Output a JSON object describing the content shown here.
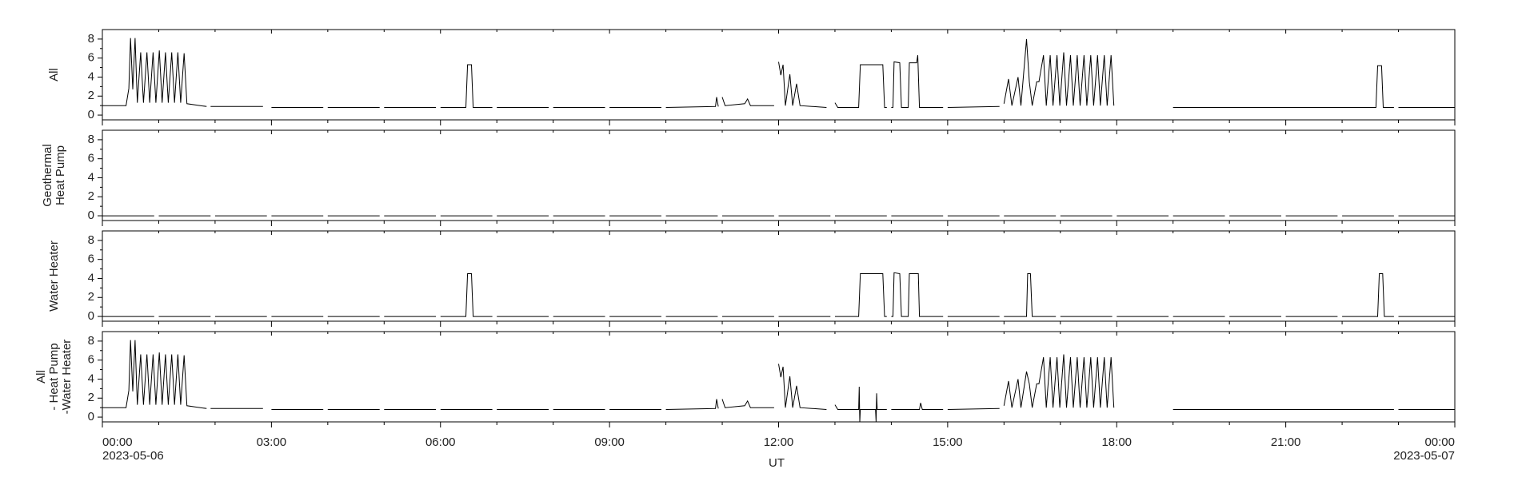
{
  "x_axis": {
    "xlim": [
      0,
      24
    ],
    "xticks": [
      {
        "value": 0,
        "label": "00:00"
      },
      {
        "value": 3,
        "label": "03:00"
      },
      {
        "value": 6,
        "label": "06:00"
      },
      {
        "value": 9,
        "label": "09:00"
      },
      {
        "value": 12,
        "label": "12:00"
      },
      {
        "value": 15,
        "label": "15:00"
      },
      {
        "value": 18,
        "label": "18:00"
      },
      {
        "value": 21,
        "label": "21:00"
      },
      {
        "value": 24,
        "label": "00:00"
      }
    ],
    "xminorticks": [
      1,
      2,
      4,
      5,
      7,
      8,
      10,
      11,
      13,
      14,
      16,
      17,
      19,
      20,
      22,
      23
    ],
    "start_date": "2023-05-06",
    "end_date": "2023-05-07",
    "xlabel": "UT"
  },
  "chart_data": [
    {
      "type": "line",
      "ylabel": [
        "All"
      ],
      "color": "#000000",
      "ylim": [
        -0.5,
        9
      ],
      "yticks": [
        0,
        2,
        4,
        6,
        8
      ],
      "yminorticks": [
        1,
        3,
        5,
        7
      ],
      "x": [
        0,
        0.42,
        0.47,
        0.5,
        0.54,
        0.58,
        0.62,
        0.68,
        0.73,
        0.79,
        0.84,
        0.9,
        0.95,
        1.01,
        1.06,
        1.12,
        1.17,
        1.23,
        1.28,
        1.34,
        1.39,
        1.45,
        1.5,
        1.85,
        1.88,
        1.92,
        2.85,
        2.9,
        3,
        3.92,
        3.96,
        4,
        4.92,
        4.96,
        5,
        5.92,
        5.96,
        6,
        6.45,
        6.48,
        6.55,
        6.58,
        6.92,
        6.96,
        7,
        7.92,
        7.96,
        8,
        8.92,
        8.96,
        9,
        9.92,
        9.96,
        10,
        10.88,
        10.9,
        10.93,
        10.96,
        11,
        11.05,
        11.4,
        11.45,
        11.5,
        11.92,
        11.96,
        12,
        12.04,
        12.08,
        12.12,
        12.2,
        12.25,
        12.32,
        12.38,
        12.85,
        12.92,
        13,
        13.05,
        13.42,
        13.45,
        13.85,
        13.88,
        13.92,
        13.96,
        14,
        14.03,
        14.05,
        14.15,
        14.18,
        14.3,
        14.32,
        14.45,
        14.47,
        14.5,
        14.92,
        14.96,
        15,
        15.92,
        15.96,
        16,
        16.08,
        16.14,
        16.25,
        16.3,
        16.4,
        16.45,
        16.5,
        16.58,
        16.62,
        16.7,
        16.75,
        16.82,
        16.87,
        16.94,
        16.99,
        17.06,
        17.11,
        17.18,
        17.23,
        17.3,
        17.35,
        17.42,
        17.47,
        17.54,
        17.59,
        17.66,
        17.71,
        17.78,
        17.83,
        17.9,
        17.95,
        17.98,
        19,
        22.6,
        22.63,
        22.7,
        22.73,
        22.92,
        22.96,
        23,
        24
      ],
      "values": [
        1.0,
        1.0,
        2.8,
        8.1,
        2.7,
        8.1,
        1.3,
        6.6,
        1.3,
        6.6,
        1.3,
        6.6,
        1.3,
        6.8,
        1.3,
        6.6,
        1.3,
        6.6,
        1.3,
        6.6,
        1.3,
        6.5,
        1.2,
        0.9,
        null,
        0.9,
        0.9,
        null,
        0.8,
        0.8,
        null,
        0.8,
        0.8,
        null,
        0.8,
        0.8,
        null,
        0.8,
        0.8,
        5.3,
        5.3,
        0.8,
        0.8,
        null,
        0.8,
        0.8,
        null,
        0.8,
        0.8,
        null,
        0.8,
        0.8,
        null,
        0.8,
        0.9,
        1.9,
        0.9,
        null,
        1.9,
        1.0,
        1.2,
        1.7,
        1.0,
        1.0,
        null,
        5.6,
        4.2,
        5.3,
        1.0,
        4.3,
        1.0,
        3.3,
        1.0,
        0.8,
        null,
        1.3,
        0.8,
        0.8,
        5.3,
        5.3,
        0.8,
        0.8,
        null,
        0.8,
        0.8,
        5.6,
        5.5,
        0.8,
        0.8,
        5.5,
        5.5,
        6.3,
        0.8,
        0.8,
        null,
        0.8,
        0.9,
        null,
        1.2,
        3.8,
        1.0,
        4.0,
        1.0,
        8.0,
        3.5,
        1.0,
        3.5,
        3.5,
        6.3,
        1.0,
        6.3,
        1.0,
        6.3,
        1.0,
        6.6,
        1.0,
        6.3,
        1.0,
        6.3,
        1.0,
        6.3,
        1.0,
        6.3,
        1.0,
        6.3,
        1.0,
        6.3,
        1.0,
        6.3,
        1.0,
        null,
        0.8,
        0.8,
        5.2,
        5.2,
        0.8,
        0.8,
        null,
        0.8,
        0.8
      ]
    },
    {
      "type": "line",
      "ylabel": [
        "Geothermal",
        "Heat Pump"
      ],
      "color": "#000000",
      "ylim": [
        -0.5,
        9
      ],
      "yticks": [
        0,
        2,
        4,
        6,
        8
      ],
      "yminorticks": [
        1,
        3,
        5,
        7
      ],
      "x": [
        0,
        0.92,
        0.96,
        1,
        1.92,
        1.96,
        2,
        2.92,
        2.96,
        3,
        3.92,
        3.96,
        4,
        4.92,
        4.96,
        5,
        5.92,
        5.96,
        6,
        6.92,
        6.96,
        7,
        7.92,
        7.96,
        8,
        8.92,
        8.96,
        9,
        9.92,
        9.96,
        10,
        10.92,
        10.96,
        11,
        11.92,
        11.96,
        12,
        12.92,
        12.96,
        13,
        13.92,
        13.96,
        14,
        14.92,
        14.96,
        15,
        15.92,
        15.96,
        16,
        16.92,
        16.96,
        17,
        17.92,
        17.96,
        18,
        18.92,
        18.96,
        19,
        19.92,
        19.96,
        20,
        20.92,
        20.96,
        21,
        21.92,
        21.96,
        22,
        22.92,
        22.96,
        23,
        24
      ],
      "values": [
        0,
        0,
        null,
        0,
        0,
        null,
        0,
        0,
        null,
        0,
        0,
        null,
        0,
        0,
        null,
        0,
        0,
        null,
        0,
        0,
        null,
        0,
        0,
        null,
        0,
        0,
        null,
        0,
        0,
        null,
        0,
        0,
        null,
        0,
        0,
        null,
        0,
        0,
        null,
        0,
        0,
        null,
        0,
        0,
        null,
        0,
        0,
        null,
        0,
        0,
        null,
        0,
        0,
        null,
        0,
        0,
        null,
        0,
        0,
        null,
        0,
        0,
        null,
        0,
        0,
        null,
        0,
        0,
        null,
        0,
        0
      ]
    },
    {
      "type": "line",
      "ylabel": [
        "Water Heater"
      ],
      "color": "#000000",
      "ylim": [
        -0.5,
        9
      ],
      "yticks": [
        0,
        2,
        4,
        6,
        8
      ],
      "yminorticks": [
        1,
        3,
        5,
        7
      ],
      "x": [
        0,
        0.92,
        0.96,
        1,
        1.92,
        1.96,
        2,
        2.92,
        2.96,
        3,
        3.92,
        3.96,
        4,
        4.92,
        4.96,
        5,
        5.92,
        5.96,
        6,
        6.45,
        6.48,
        6.55,
        6.58,
        6.92,
        6.96,
        7,
        7.92,
        7.96,
        8,
        8.92,
        8.96,
        9,
        9.92,
        9.96,
        10,
        10.92,
        10.96,
        11,
        11.92,
        11.96,
        12,
        12.92,
        12.96,
        13,
        13.42,
        13.45,
        13.85,
        13.88,
        13.92,
        13.96,
        14,
        14.03,
        14.05,
        14.15,
        14.18,
        14.3,
        14.32,
        14.48,
        14.5,
        14.92,
        14.96,
        15,
        15.92,
        15.96,
        16,
        16.4,
        16.42,
        16.47,
        16.5,
        16.92,
        16.96,
        17,
        17.92,
        17.96,
        18,
        18.92,
        18.96,
        19,
        19.92,
        19.96,
        20,
        20.92,
        20.96,
        21,
        21.92,
        21.96,
        22,
        22.63,
        22.66,
        22.72,
        22.75,
        22.92,
        22.96,
        23,
        24
      ],
      "values": [
        0,
        0,
        null,
        0,
        0,
        null,
        0,
        0,
        null,
        0,
        0,
        null,
        0,
        0,
        null,
        0,
        0,
        null,
        0,
        0,
        4.5,
        4.5,
        0,
        0,
        null,
        0,
        0,
        null,
        0,
        0,
        null,
        0,
        0,
        null,
        0,
        0,
        null,
        0,
        0,
        null,
        0,
        0,
        null,
        0,
        0,
        4.5,
        4.5,
        0,
        0,
        null,
        0,
        0,
        4.6,
        4.5,
        0,
        0,
        4.5,
        4.5,
        0,
        0,
        null,
        0,
        0,
        null,
        0,
        0,
        4.5,
        4.5,
        0,
        0,
        null,
        0,
        0,
        null,
        0,
        0,
        null,
        0,
        0,
        null,
        0,
        0,
        null,
        0,
        0,
        null,
        0,
        0,
        4.5,
        4.5,
        0,
        0,
        null,
        0,
        0
      ]
    },
    {
      "type": "line",
      "ylabel": [
        "All",
        "- Heat Pump",
        "-Water Heater"
      ],
      "color": "#000000",
      "ylim": [
        -0.5,
        9
      ],
      "yticks": [
        0,
        2,
        4,
        6,
        8
      ],
      "yminorticks": [
        1,
        3,
        5,
        7
      ],
      "x": [
        0,
        0.42,
        0.47,
        0.5,
        0.54,
        0.58,
        0.62,
        0.68,
        0.73,
        0.79,
        0.84,
        0.9,
        0.95,
        1.01,
        1.06,
        1.12,
        1.17,
        1.23,
        1.28,
        1.34,
        1.39,
        1.45,
        1.5,
        1.85,
        1.88,
        1.92,
        2.85,
        2.9,
        3,
        3.92,
        3.96,
        4,
        4.92,
        4.96,
        5,
        5.92,
        5.96,
        6,
        6.92,
        6.96,
        7,
        7.92,
        7.96,
        8,
        8.92,
        8.96,
        9,
        9.92,
        9.96,
        10,
        10.88,
        10.9,
        10.93,
        10.96,
        11,
        11.05,
        11.4,
        11.45,
        11.5,
        11.92,
        11.96,
        12,
        12.04,
        12.08,
        12.12,
        12.2,
        12.25,
        12.32,
        12.38,
        12.85,
        12.92,
        13,
        13.05,
        13.42,
        13.43,
        13.44,
        13.45,
        13.72,
        13.73,
        13.74,
        13.75,
        13.92,
        13.96,
        14,
        14.5,
        14.52,
        14.55,
        14.92,
        14.96,
        15,
        15.92,
        15.96,
        16,
        16.08,
        16.14,
        16.25,
        16.3,
        16.4,
        16.45,
        16.5,
        16.58,
        16.62,
        16.7,
        16.75,
        16.82,
        16.87,
        16.94,
        16.99,
        17.06,
        17.11,
        17.18,
        17.23,
        17.3,
        17.35,
        17.42,
        17.47,
        17.54,
        17.59,
        17.66,
        17.71,
        17.78,
        17.83,
        17.9,
        17.95,
        17.98,
        19,
        22.92,
        22.96,
        23,
        24
      ],
      "values": [
        1.0,
        1.0,
        2.8,
        8.1,
        2.7,
        8.1,
        1.3,
        6.6,
        1.3,
        6.6,
        1.3,
        6.6,
        1.3,
        6.8,
        1.3,
        6.6,
        1.3,
        6.6,
        1.3,
        6.6,
        1.3,
        6.5,
        1.2,
        0.9,
        null,
        0.9,
        0.9,
        null,
        0.8,
        0.8,
        null,
        0.8,
        0.8,
        null,
        0.8,
        0.8,
        null,
        0.8,
        0.8,
        null,
        0.8,
        0.8,
        null,
        0.8,
        0.8,
        null,
        0.8,
        0.8,
        null,
        0.8,
        0.9,
        1.9,
        0.9,
        null,
        1.9,
        1.0,
        1.2,
        1.7,
        1.0,
        1.0,
        null,
        5.6,
        4.2,
        5.3,
        1.0,
        4.3,
        1.0,
        3.3,
        1.0,
        0.8,
        null,
        1.3,
        0.8,
        0.8,
        3.2,
        -0.5,
        0.8,
        0.8,
        -0.5,
        2.5,
        0.8,
        0.8,
        null,
        0.8,
        0.8,
        1.5,
        0.8,
        0.8,
        null,
        0.8,
        0.9,
        null,
        1.2,
        3.8,
        1.0,
        4.0,
        1.0,
        4.8,
        3.5,
        1.0,
        3.5,
        3.5,
        6.3,
        1.0,
        6.3,
        1.0,
        6.3,
        1.0,
        6.6,
        1.0,
        6.3,
        1.0,
        6.3,
        1.0,
        6.3,
        1.0,
        6.3,
        1.0,
        6.3,
        1.0,
        6.3,
        1.0,
        6.3,
        1.0,
        null,
        0.8,
        0.8,
        null,
        0.8,
        0.8
      ]
    }
  ]
}
